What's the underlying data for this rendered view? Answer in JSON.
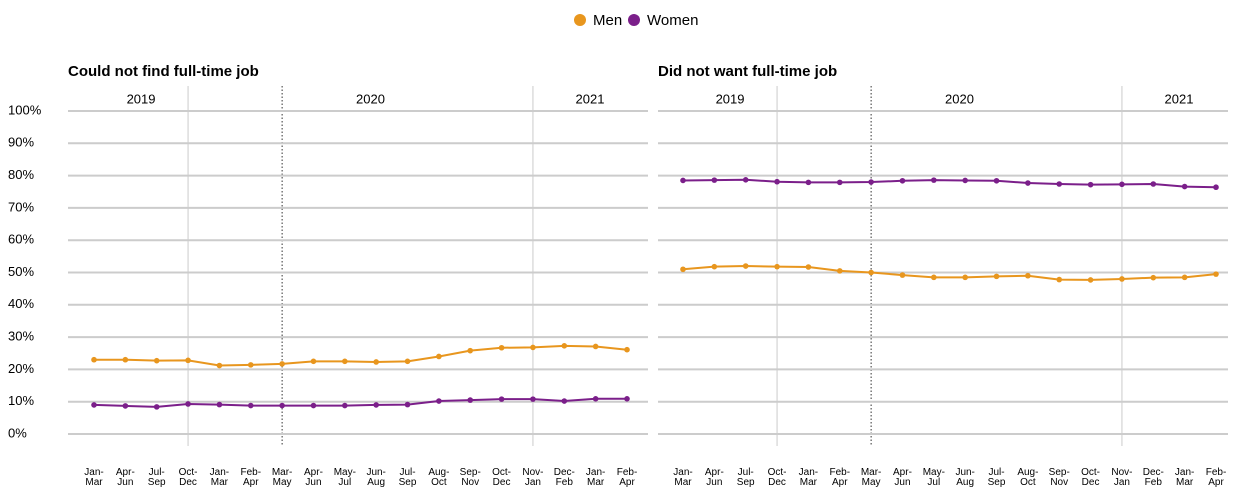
{
  "chart_data": [
    {
      "type": "line",
      "title": "Could not find full-time job",
      "year_labels": [
        "2019",
        "2020",
        "2021"
      ],
      "categories": [
        "Jan-Mar",
        "Apr-Jun",
        "Jul-Sep",
        "Oct-Dec",
        "Jan-Mar",
        "Feb-Apr",
        "Mar-May",
        "Apr-Jun",
        "May-Jul",
        "Jun-Aug",
        "Jul-Sep",
        "Aug-Oct",
        "Sep-Nov",
        "Oct-Dec",
        "Nov-Jan",
        "Dec-Feb",
        "Jan-Mar",
        "Feb-Apr"
      ],
      "series": [
        {
          "name": "Men",
          "color": "#e8961e",
          "values": [
            23,
            23,
            22.7,
            22.8,
            21.2,
            21.4,
            21.7,
            22.5,
            22.5,
            22.3,
            22.5,
            24,
            25.8,
            26.7,
            26.8,
            27.3,
            27.1,
            26.1
          ]
        },
        {
          "name": "Women",
          "color": "#7b1f8a",
          "values": [
            9,
            8.7,
            8.4,
            9.3,
            9.1,
            8.8,
            8.8,
            8.8,
            8.8,
            9,
            9.1,
            10.2,
            10.5,
            10.8,
            10.8,
            10.2,
            10.9,
            10.9
          ]
        }
      ],
      "ylim": [
        0,
        100
      ],
      "yticks": [
        {
          "value": 0,
          "label": "0%"
        },
        {
          "value": 10,
          "label": "10%"
        },
        {
          "value": 20,
          "label": "20%"
        },
        {
          "value": 30,
          "label": "30%"
        },
        {
          "value": 40,
          "label": "40%"
        },
        {
          "value": 50,
          "label": "50%"
        },
        {
          "value": 60,
          "label": "60%"
        },
        {
          "value": 70,
          "label": "70%"
        },
        {
          "value": 80,
          "label": "80%"
        },
        {
          "value": 90,
          "label": "90%"
        },
        {
          "value": 100,
          "label": "100%"
        }
      ],
      "grid": true
    },
    {
      "type": "line",
      "title": "Did not want full-time job",
      "year_labels": [
        "2019",
        "2020",
        "2021"
      ],
      "categories": [
        "Jan-Mar",
        "Apr-Jun",
        "Jul-Sep",
        "Oct-Dec",
        "Jan-Mar",
        "Feb-Apr",
        "Mar-May",
        "Apr-Jun",
        "May-Jul",
        "Jun-Aug",
        "Jul-Sep",
        "Aug-Oct",
        "Sep-Nov",
        "Oct-Dec",
        "Nov-Jan",
        "Dec-Feb",
        "Jan-Mar",
        "Feb-Apr"
      ],
      "series": [
        {
          "name": "Men",
          "color": "#e8961e",
          "values": [
            51,
            51.8,
            52,
            51.8,
            51.7,
            50.5,
            50,
            49.2,
            48.5,
            48.5,
            48.8,
            49,
            47.8,
            47.7,
            48,
            48.4,
            48.5,
            49.5
          ]
        },
        {
          "name": "Women",
          "color": "#7b1f8a",
          "values": [
            78.5,
            78.6,
            78.7,
            78.1,
            77.9,
            77.9,
            78,
            78.4,
            78.6,
            78.5,
            78.4,
            77.7,
            77.4,
            77.2,
            77.3,
            77.4,
            76.6,
            76.4
          ]
        }
      ],
      "ylim": [
        0,
        100
      ],
      "yticks": [
        0,
        10,
        20,
        30,
        40,
        50,
        60,
        70,
        80,
        90,
        100
      ],
      "grid": true
    }
  ]
}
